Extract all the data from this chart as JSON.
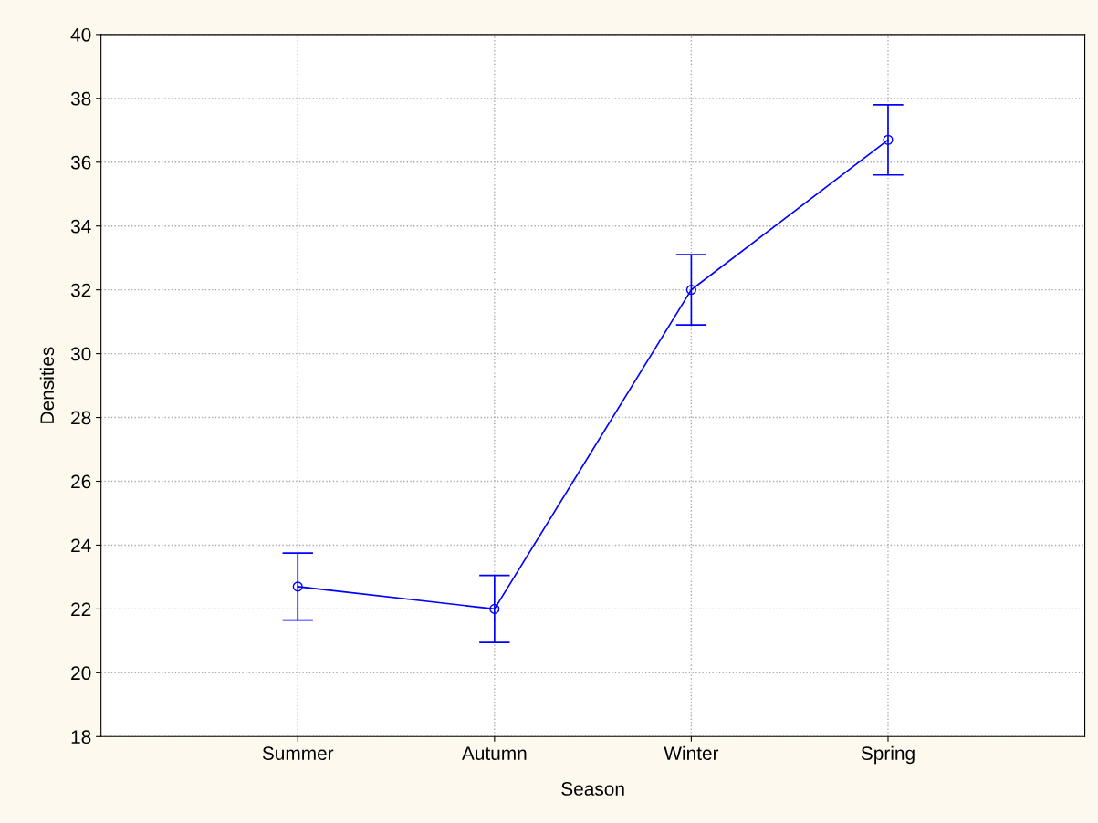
{
  "chart_data": {
    "type": "line",
    "xlabel": "Season",
    "ylabel": "Densities",
    "categories": [
      "Summer",
      "Autumn",
      "Winter",
      "Spring"
    ],
    "series": [
      {
        "color": "#0000ff",
        "values": [
          22.7,
          22.0,
          32.0,
          36.7
        ],
        "errors": [
          1.05,
          1.05,
          1.1,
          1.1
        ]
      }
    ],
    "ylim": [
      18,
      40
    ],
    "yticks": [
      18,
      20,
      22,
      24,
      26,
      28,
      30,
      32,
      34,
      36,
      38,
      40
    ],
    "grid": true,
    "marker": "circle",
    "line_style": "solid"
  }
}
